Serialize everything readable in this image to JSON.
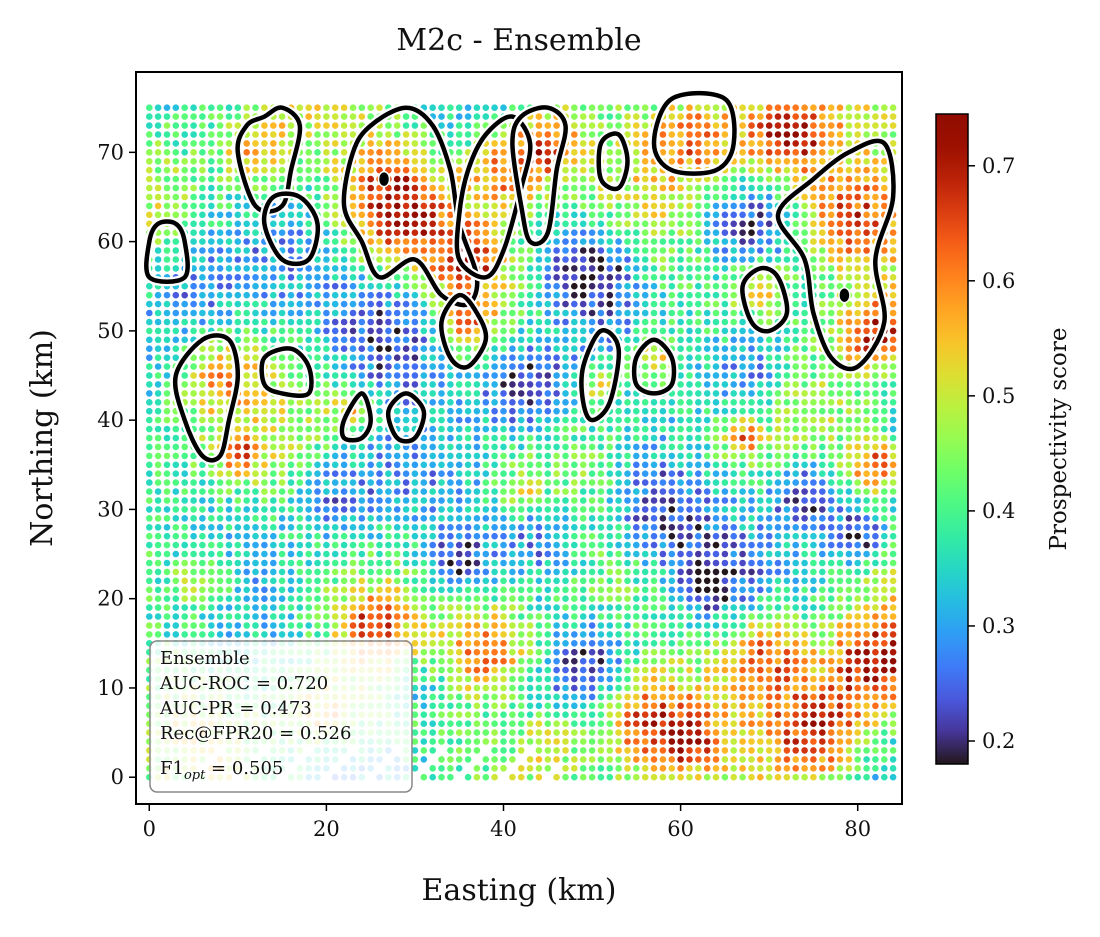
{
  "chart_data": {
    "type": "scatter",
    "title": "M2c - Ensemble",
    "xlabel": "Easting (km)",
    "ylabel": "Northing (km)",
    "xlim": [
      -1.5,
      85
    ],
    "ylim": [
      -3,
      79
    ],
    "xticks": [
      0,
      20,
      40,
      60,
      80
    ],
    "yticks": [
      0,
      10,
      20,
      30,
      40,
      50,
      60,
      70
    ],
    "grid_spacing_km": 1,
    "colormap": "turbo",
    "colorbar": {
      "label": "Prospectivity score",
      "range": [
        0.18,
        0.745
      ],
      "ticks": [
        0.2,
        0.3,
        0.4,
        0.5,
        0.6,
        0.7
      ]
    },
    "hotspots": [
      {
        "x": 72,
        "y": 72,
        "r": 5.0,
        "v": 0.73
      },
      {
        "x": 79,
        "y": 62,
        "r": 6.5,
        "v": 0.745
      },
      {
        "x": 82,
        "y": 50,
        "r": 4.5,
        "v": 0.72
      },
      {
        "x": 76,
        "y": 5,
        "r": 6.0,
        "v": 0.72
      },
      {
        "x": 82,
        "y": 13,
        "r": 5.0,
        "v": 0.68
      },
      {
        "x": 70,
        "y": 14,
        "r": 5.0,
        "v": 0.66
      },
      {
        "x": 56,
        "y": 6,
        "r": 5.5,
        "v": 0.67
      },
      {
        "x": 45,
        "y": 4,
        "r": 4.0,
        "v": 0.6
      },
      {
        "x": 39,
        "y": 14,
        "r": 5.0,
        "v": 0.66
      },
      {
        "x": 25,
        "y": 17,
        "r": 3.5,
        "v": 0.6
      },
      {
        "x": 20,
        "y": 7,
        "r": 4.0,
        "v": 0.6
      },
      {
        "x": 6,
        "y": 22,
        "r": 3.5,
        "v": 0.62
      },
      {
        "x": 61,
        "y": 4,
        "r": 3.0,
        "v": 0.58
      },
      {
        "x": 82,
        "y": 35,
        "r": 3.0,
        "v": 0.7
      },
      {
        "x": 28,
        "y": 64,
        "r": 6.5,
        "v": 0.745
      },
      {
        "x": 40,
        "y": 68,
        "r": 5.0,
        "v": 0.7
      },
      {
        "x": 36,
        "y": 58,
        "r": 4.0,
        "v": 0.65
      },
      {
        "x": 45,
        "y": 71,
        "r": 4.0,
        "v": 0.65
      },
      {
        "x": 62,
        "y": 72,
        "r": 5.0,
        "v": 0.62
      },
      {
        "x": 12,
        "y": 70,
        "r": 4.0,
        "v": 0.6
      },
      {
        "x": 36,
        "y": 51,
        "r": 3.0,
        "v": 0.6
      },
      {
        "x": 57,
        "y": 47,
        "r": 3.0,
        "v": 0.64
      },
      {
        "x": 51,
        "y": 44,
        "r": 3.0,
        "v": 0.6
      },
      {
        "x": 23,
        "y": 41,
        "r": 2.5,
        "v": 0.6
      },
      {
        "x": 10,
        "y": 36,
        "r": 2.0,
        "v": 0.64
      },
      {
        "x": 67,
        "y": 38,
        "r": 2.0,
        "v": 0.62
      },
      {
        "x": 42,
        "y": 32,
        "r": 2.5,
        "v": 0.56
      },
      {
        "x": 8,
        "y": 45,
        "r": 4.0,
        "v": 0.55
      },
      {
        "x": 69,
        "y": 55,
        "r": 3.0,
        "v": 0.6
      }
    ],
    "coldspots": [
      {
        "x": 28,
        "y": 50,
        "r": 7.0,
        "v": 0.2
      },
      {
        "x": 42,
        "y": 44,
        "r": 5.0,
        "v": 0.2
      },
      {
        "x": 50,
        "y": 57,
        "r": 5.0,
        "v": 0.2
      },
      {
        "x": 57,
        "y": 30,
        "r": 6.0,
        "v": 0.2
      },
      {
        "x": 45,
        "y": 27,
        "r": 5.0,
        "v": 0.22
      },
      {
        "x": 35,
        "y": 24,
        "r": 3.5,
        "v": 0.22
      },
      {
        "x": 68,
        "y": 45,
        "r": 5.0,
        "v": 0.22
      },
      {
        "x": 74,
        "y": 32,
        "r": 4.0,
        "v": 0.2
      },
      {
        "x": 63,
        "y": 22,
        "r": 4.0,
        "v": 0.25
      },
      {
        "x": 80,
        "y": 27,
        "r": 3.0,
        "v": 0.2
      },
      {
        "x": 21,
        "y": 31,
        "r": 5.0,
        "v": 0.28
      },
      {
        "x": 5,
        "y": 55,
        "r": 6.0,
        "v": 0.28
      },
      {
        "x": 50,
        "y": 13,
        "r": 4.0,
        "v": 0.28
      },
      {
        "x": 67,
        "y": 62,
        "r": 5.0,
        "v": 0.25
      },
      {
        "x": 31,
        "y": 10,
        "r": 3.5,
        "v": 0.3
      }
    ],
    "contours": [
      [
        [
          10,
          70
        ],
        [
          12,
          64
        ],
        [
          15,
          64
        ],
        [
          16,
          68
        ],
        [
          17,
          73
        ],
        [
          15,
          75
        ],
        [
          13,
          74
        ],
        [
          11,
          73
        ]
      ],
      [
        [
          13,
          62
        ],
        [
          15,
          58
        ],
        [
          18,
          58
        ],
        [
          19,
          62
        ],
        [
          17,
          65
        ],
        [
          14,
          65
        ]
      ],
      [
        [
          0,
          56
        ],
        [
          4,
          56
        ],
        [
          4,
          60
        ],
        [
          3,
          62
        ],
        [
          1,
          62
        ],
        [
          0,
          60
        ]
      ],
      [
        [
          23,
          70
        ],
        [
          25,
          73
        ],
        [
          29,
          75
        ],
        [
          32,
          73
        ],
        [
          34,
          68
        ],
        [
          35,
          62
        ],
        [
          37,
          56
        ],
        [
          36,
          53
        ],
        [
          33,
          54
        ],
        [
          30,
          58
        ],
        [
          26,
          56
        ],
        [
          24,
          60
        ],
        [
          22,
          64
        ]
      ],
      [
        [
          38,
          72
        ],
        [
          41,
          74
        ],
        [
          43,
          71
        ],
        [
          42,
          66
        ],
        [
          40,
          59
        ],
        [
          38,
          56
        ],
        [
          35,
          58
        ],
        [
          35,
          63
        ],
        [
          36,
          68
        ]
      ],
      [
        [
          41,
          71
        ],
        [
          42,
          74
        ],
        [
          45,
          75
        ],
        [
          47,
          73
        ],
        [
          46,
          68
        ],
        [
          45,
          61
        ],
        [
          43,
          60
        ],
        [
          42,
          64
        ]
      ],
      [
        [
          33,
          51
        ],
        [
          35,
          54
        ],
        [
          37,
          52
        ],
        [
          38,
          49
        ],
        [
          36,
          46
        ],
        [
          34,
          47
        ]
      ],
      [
        [
          51,
          71
        ],
        [
          53,
          72
        ],
        [
          54,
          69
        ],
        [
          53,
          66
        ],
        [
          51,
          67
        ]
      ],
      [
        [
          57,
          71
        ],
        [
          59,
          76
        ],
        [
          65,
          76
        ],
        [
          66,
          71
        ],
        [
          64,
          68
        ],
        [
          59,
          68
        ]
      ],
      [
        [
          71,
          63
        ],
        [
          75,
          67
        ],
        [
          79,
          70
        ],
        [
          83,
          71
        ],
        [
          84,
          65
        ],
        [
          82,
          58
        ],
        [
          83,
          51
        ],
        [
          80,
          46
        ],
        [
          77,
          47
        ],
        [
          75,
          52
        ],
        [
          74,
          58
        ]
      ],
      [
        [
          67,
          55
        ],
        [
          69,
          57
        ],
        [
          71,
          56
        ],
        [
          72,
          52
        ],
        [
          70,
          50
        ],
        [
          68,
          51
        ]
      ],
      [
        [
          6,
          49
        ],
        [
          9,
          49
        ],
        [
          10,
          45
        ],
        [
          9,
          40
        ],
        [
          8,
          36
        ],
        [
          6,
          36
        ],
        [
          4,
          40
        ],
        [
          3,
          45
        ]
      ],
      [
        [
          13,
          47
        ],
        [
          16,
          48
        ],
        [
          18,
          46
        ],
        [
          18,
          43
        ],
        [
          15,
          43
        ],
        [
          13,
          44
        ]
      ],
      [
        [
          22,
          40
        ],
        [
          24,
          43
        ],
        [
          25,
          40
        ],
        [
          24,
          38
        ],
        [
          22,
          38
        ]
      ],
      [
        [
          27,
          41
        ],
        [
          29,
          43
        ],
        [
          31,
          41
        ],
        [
          30,
          38
        ],
        [
          28,
          38
        ]
      ],
      [
        [
          49,
          46
        ],
        [
          51,
          50
        ],
        [
          53,
          48
        ],
        [
          52,
          42
        ],
        [
          50,
          40
        ],
        [
          49,
          42
        ]
      ],
      [
        [
          55,
          47
        ],
        [
          57,
          49
        ],
        [
          59,
          47
        ],
        [
          59,
          44
        ],
        [
          57,
          43
        ],
        [
          55,
          44
        ]
      ]
    ],
    "markers": [
      [
        26.5,
        67
      ],
      [
        78.5,
        54
      ]
    ]
  },
  "legend_box": {
    "title": "Ensemble",
    "lines": [
      "AUC-ROC  = 0.720",
      "AUC-PR  = 0.473",
      "Rec@FPR20  = 0.526",
      "F1opt = 0.505"
    ],
    "f1_main": "F1",
    "f1_sub": "opt",
    "f1_value": " = 0.505"
  }
}
